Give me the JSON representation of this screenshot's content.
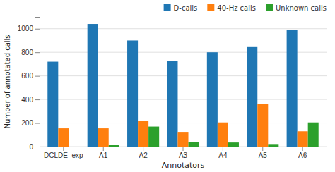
{
  "chart_data": {
    "type": "bar",
    "categories": [
      "DCLDE_exp",
      "A1",
      "A2",
      "A3",
      "A4",
      "A5",
      "A6"
    ],
    "series": [
      {
        "name": "D-calls",
        "color": "#1f77b4",
        "values": [
          720,
          1040,
          900,
          725,
          800,
          850,
          990
        ]
      },
      {
        "name": "40-Hz calls",
        "color": "#ff7f0e",
        "values": [
          155,
          155,
          220,
          125,
          205,
          360,
          130
        ]
      },
      {
        "name": "Unknown calls",
        "color": "#2ca02c",
        "values": [
          0,
          12,
          170,
          40,
          35,
          22,
          205
        ]
      }
    ],
    "xlabel": "Annotators",
    "ylabel": "Number of annotated calls",
    "ylim": [
      0,
      1100
    ],
    "yticks": [
      0,
      200,
      400,
      600,
      800,
      1000
    ],
    "grid": true,
    "legend": "upper right"
  }
}
